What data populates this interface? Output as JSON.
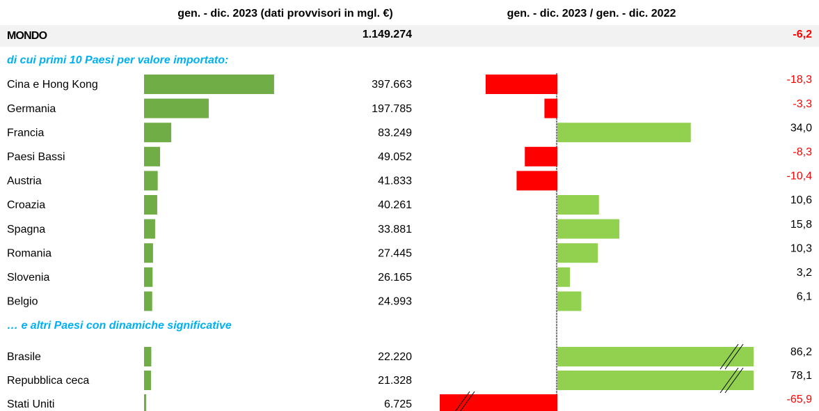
{
  "chart_data": {
    "type": "table-bars",
    "columns": [
      "gen. - dic. 2023 (dati provvisori in mgl. €)",
      "gen. - dic. 2023 /  gen. - dic. 2022"
    ],
    "total": {
      "name": "MONDO",
      "value": 1149274,
      "value_label": "1.149.274",
      "change": -6.2,
      "change_label": "-6,2"
    },
    "value_xlim": [
      0,
      800000
    ],
    "change_xlim": [
      -30,
      50
    ],
    "value_color": "#70ad47",
    "positive_color": "#92d050",
    "negative_color": "#ff0000",
    "groups": [
      {
        "title": "di cui primi 10 Paesi per valore importato:",
        "categories": [
          "Cina e Hong Kong",
          "Germania",
          "Francia",
          "Paesi Bassi",
          "Austria",
          "Croazia",
          "Spagna",
          "Romania",
          "Slovenia",
          "Belgio"
        ],
        "values": [
          397663,
          197785,
          83249,
          49052,
          41833,
          40261,
          33881,
          27445,
          26165,
          24993
        ],
        "value_labels": [
          "397.663",
          "197.785",
          "83.249",
          "49.052",
          "41.833",
          "40.261",
          "33.881",
          "27.445",
          "26.165",
          "24.993"
        ],
        "changes": [
          -18.3,
          -3.3,
          34.0,
          -8.3,
          -10.4,
          10.6,
          15.8,
          10.3,
          3.2,
          6.1
        ],
        "change_labels": [
          "-18,3",
          "-3,3",
          "34,0",
          "-8,3",
          "-10,4",
          "10,6",
          "15,8",
          "10,3",
          "3,2",
          "6,1"
        ]
      },
      {
        "title": "… e altri Paesi con dinamiche significative",
        "categories": [
          "Brasile",
          "Repubblica ceca",
          "Stati Uniti"
        ],
        "values": [
          22220,
          21328,
          6725
        ],
        "value_labels": [
          "22.220",
          "21.328",
          "6.725"
        ],
        "changes": [
          86.2,
          78.1,
          -65.9
        ],
        "change_labels": [
          "86,2",
          "78,1",
          "-65,9"
        ]
      }
    ]
  }
}
